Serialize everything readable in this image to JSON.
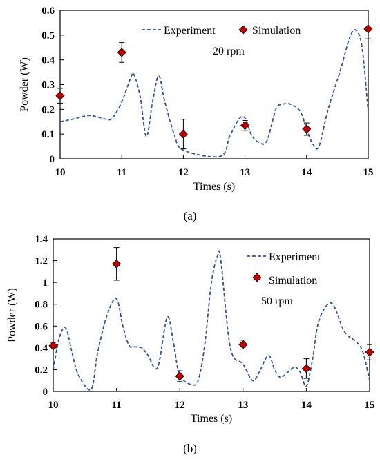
{
  "chart_data": [
    {
      "type": "line",
      "caption": "(a)",
      "xlabel": "Times (s)",
      "ylabel": "Powder (W)",
      "annotation": "20 rpm",
      "xlim": [
        10,
        15
      ],
      "ylim": [
        0,
        0.6
      ],
      "xticks": [
        "10",
        "11",
        "12",
        "13",
        "14",
        "15"
      ],
      "yticks": [
        "0",
        "0.1",
        "0.2",
        "0.3",
        "0.4",
        "0.5",
        "0.6"
      ],
      "legend_position": "top",
      "series": [
        {
          "name": "Experiment",
          "style": "dashed-line",
          "color": "#2f5597",
          "x": [
            10.0,
            10.2,
            10.45,
            10.6,
            10.75,
            10.85,
            11.0,
            11.15,
            11.2,
            11.3,
            11.4,
            11.5,
            11.6,
            11.7,
            11.85,
            12.0,
            12.6,
            12.75,
            12.9,
            13.0,
            13.1,
            13.2,
            13.35,
            13.5,
            13.6,
            13.75,
            13.9,
            14.0,
            14.1,
            14.2,
            14.35,
            14.55,
            14.7,
            14.8,
            14.9,
            15.0
          ],
          "y": [
            0.15,
            0.16,
            0.175,
            0.17,
            0.16,
            0.165,
            0.23,
            0.33,
            0.34,
            0.25,
            0.09,
            0.23,
            0.335,
            0.23,
            0.1,
            0.035,
            0.01,
            0.09,
            0.16,
            0.165,
            0.1,
            0.07,
            0.07,
            0.2,
            0.22,
            0.22,
            0.19,
            0.12,
            0.06,
            0.05,
            0.2,
            0.36,
            0.49,
            0.52,
            0.45,
            0.19
          ]
        },
        {
          "name": "Simulation",
          "style": "diamond-markers",
          "color": "#c00000",
          "x": [
            10,
            11,
            12,
            13,
            14,
            15
          ],
          "y": [
            0.255,
            0.43,
            0.1,
            0.135,
            0.12,
            0.525
          ],
          "error": [
            0.03,
            0.04,
            0.06,
            0.02,
            0.025,
            0.04
          ]
        }
      ]
    },
    {
      "type": "line",
      "caption": "(b)",
      "xlabel": "Times (s)",
      "ylabel": "Powder (W)",
      "annotation": "50 rpm",
      "xlim": [
        10,
        15
      ],
      "ylim": [
        0,
        1.4
      ],
      "xticks": [
        "10",
        "11",
        "12",
        "13",
        "14",
        "15"
      ],
      "yticks": [
        "0",
        "0.2",
        "0.4",
        "0.6",
        "0.8",
        "1",
        "1.2",
        "1.4"
      ],
      "legend_position": "top-right",
      "series": [
        {
          "name": "Experiment",
          "style": "dashed-line",
          "color": "#2f5597",
          "x": [
            10.0,
            10.1,
            10.2,
            10.3,
            10.4,
            10.6,
            10.7,
            10.85,
            11.0,
            11.1,
            11.2,
            11.3,
            11.4,
            11.5,
            11.65,
            11.8,
            11.9,
            12.0,
            12.2,
            12.3,
            12.4,
            12.5,
            12.6,
            12.65,
            12.8,
            13.0,
            13.15,
            13.25,
            13.4,
            13.5,
            13.6,
            13.8,
            13.9,
            14.0,
            14.1,
            14.2,
            14.4,
            14.6,
            14.8,
            14.9,
            15.0
          ],
          "y": [
            0.2,
            0.5,
            0.58,
            0.35,
            0.15,
            0.02,
            0.35,
            0.7,
            0.85,
            0.6,
            0.42,
            0.41,
            0.4,
            0.33,
            0.22,
            0.68,
            0.45,
            0.15,
            0.06,
            0.12,
            0.45,
            1.0,
            1.25,
            1.2,
            0.4,
            0.25,
            0.1,
            0.17,
            0.33,
            0.2,
            0.13,
            0.22,
            0.18,
            0.05,
            0.3,
            0.65,
            0.81,
            0.55,
            0.45,
            0.35,
            0.1
          ]
        },
        {
          "name": "Simulation",
          "style": "diamond-markers",
          "color": "#c00000",
          "x": [
            10,
            11,
            12,
            13,
            14,
            15
          ],
          "y": [
            0.42,
            1.17,
            0.14,
            0.43,
            0.21,
            0.36
          ],
          "error": [
            0.03,
            0.15,
            0.05,
            0.04,
            0.09,
            0.07
          ]
        }
      ]
    }
  ]
}
